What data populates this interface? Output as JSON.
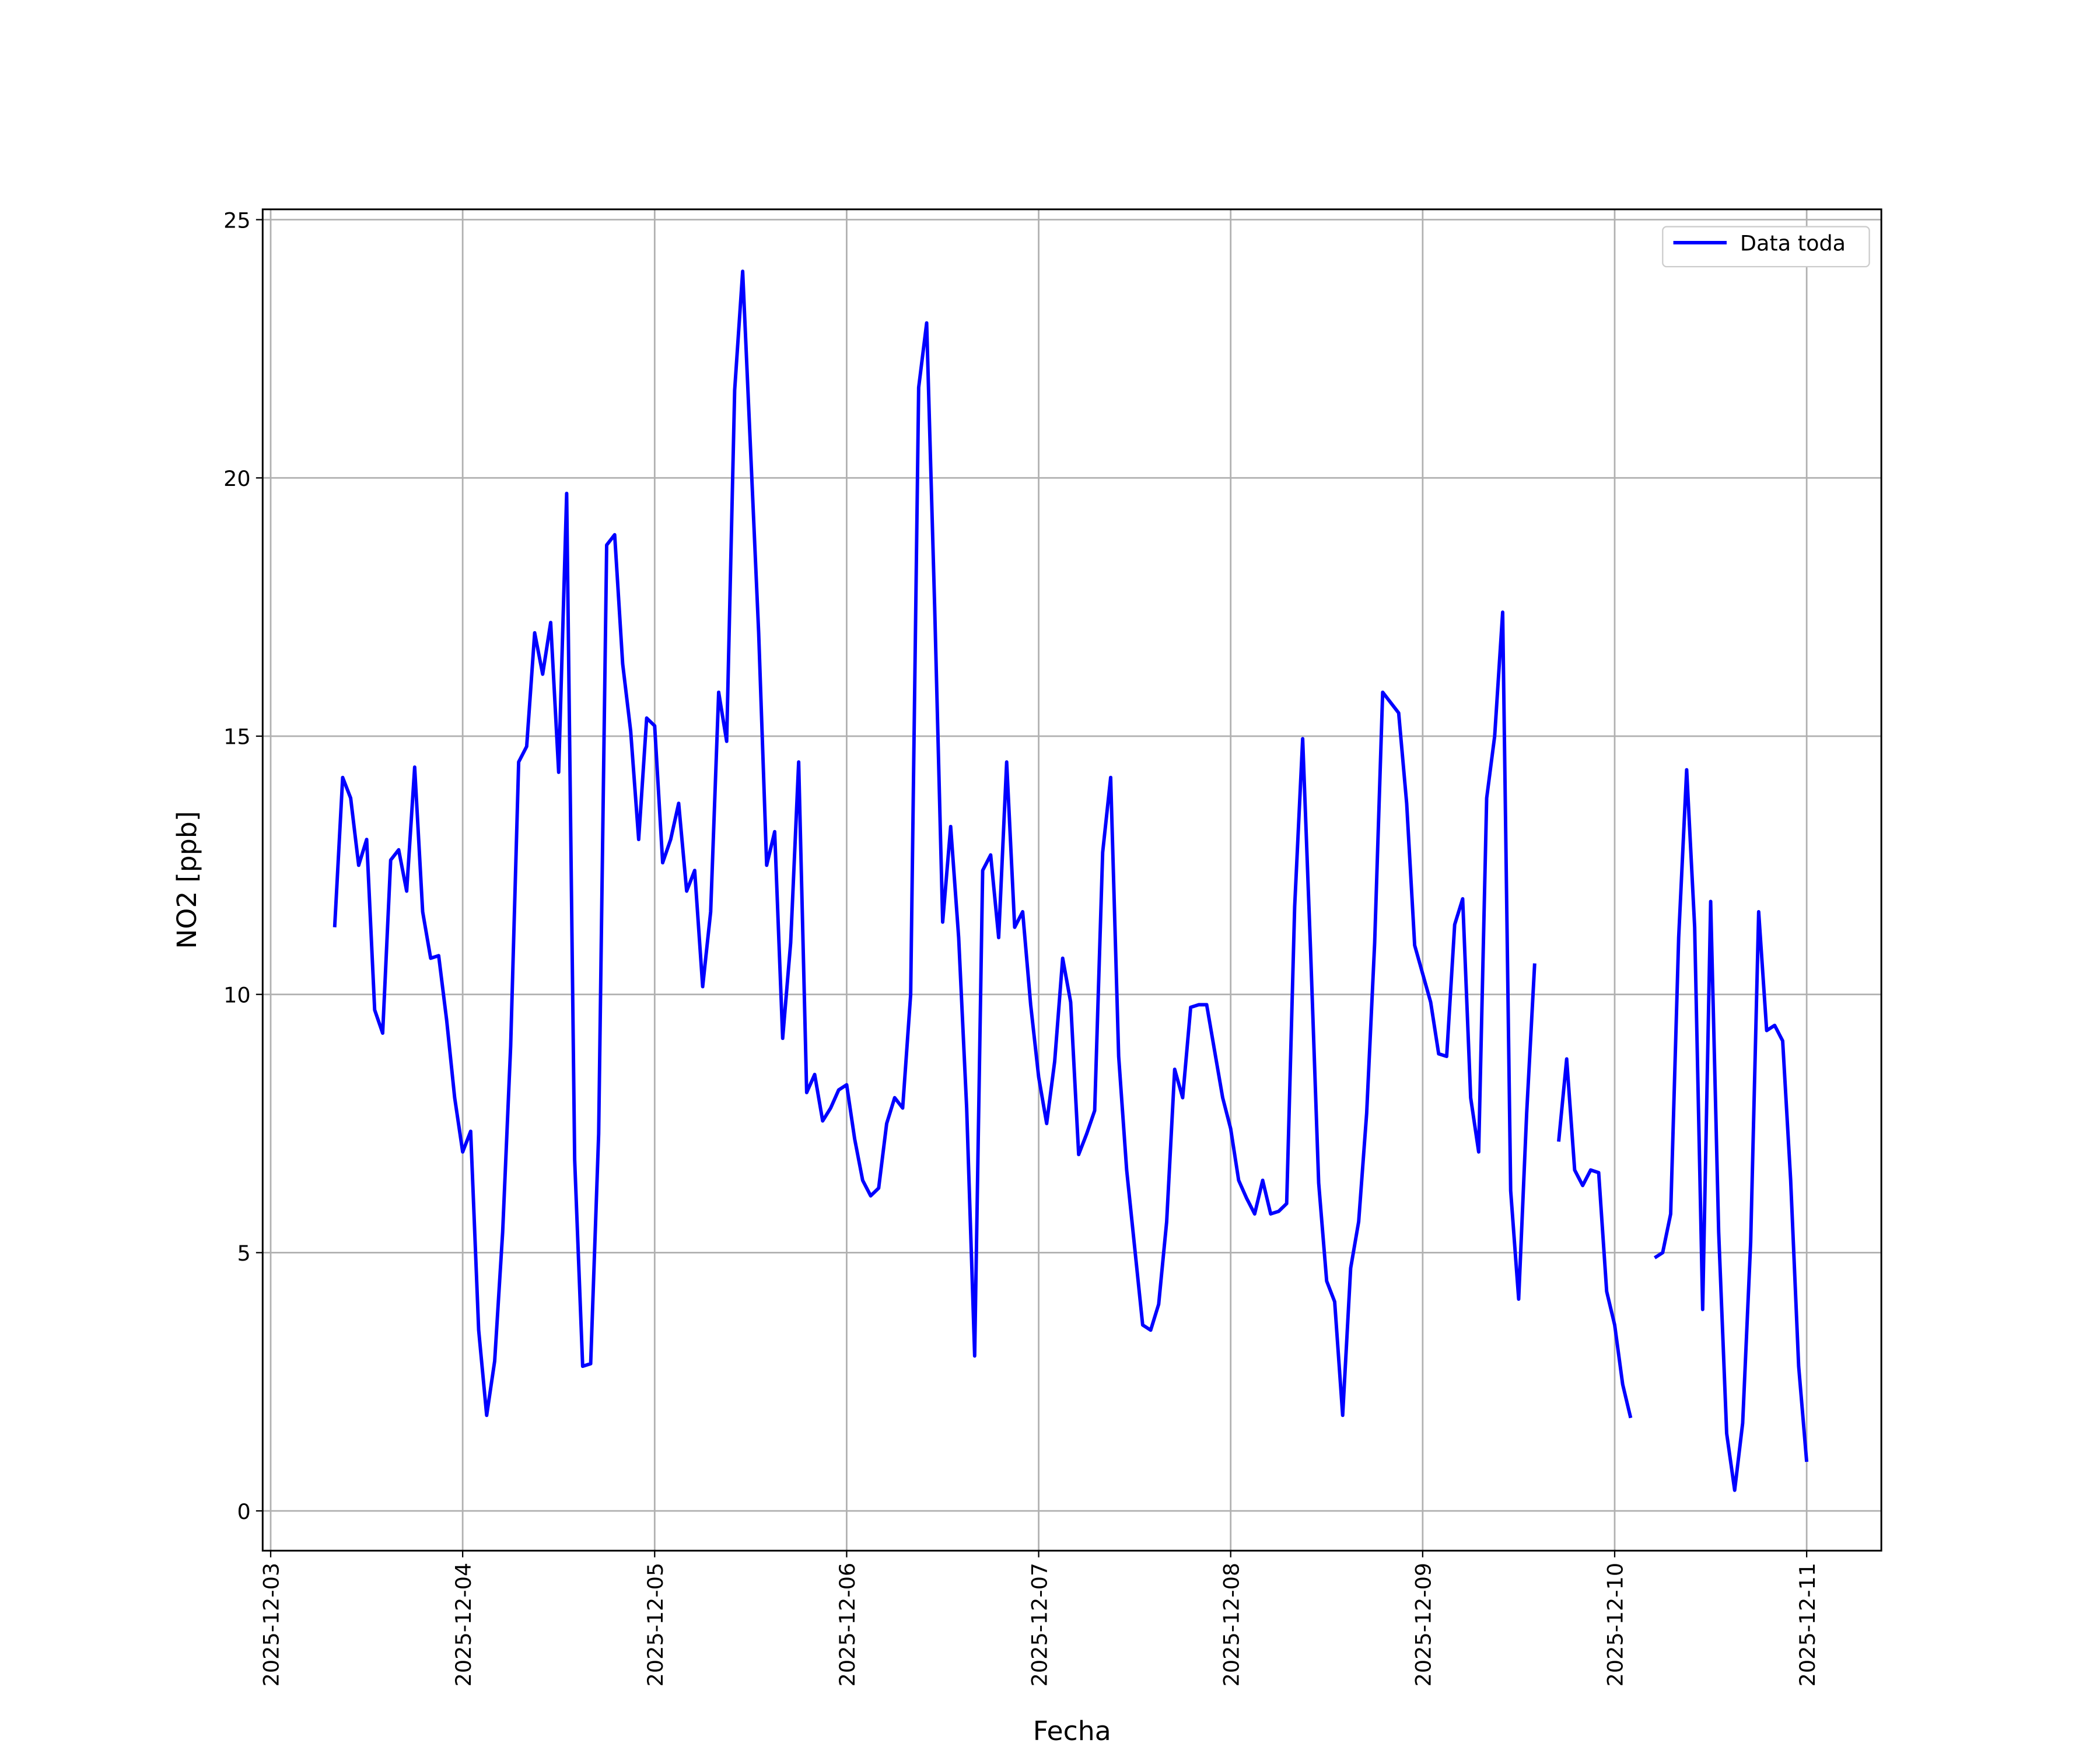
{
  "chart_data": {
    "type": "line",
    "xlabel": "Fecha",
    "ylabel": "NO2 [ppb]",
    "x": [
      "2025-12-03 08:00",
      "2025-12-03 09:00",
      "2025-12-03 10:00",
      "2025-12-03 11:00",
      "2025-12-03 12:00",
      "2025-12-03 13:00",
      "2025-12-03 14:00",
      "2025-12-03 15:00",
      "2025-12-03 16:00",
      "2025-12-03 17:00",
      "2025-12-03 18:00",
      "2025-12-03 19:00",
      "2025-12-03 20:00",
      "2025-12-03 21:00",
      "2025-12-03 22:00",
      "2025-12-03 23:00",
      "2025-12-04 00:00",
      "2025-12-04 01:00",
      "2025-12-04 02:00",
      "2025-12-04 03:00",
      "2025-12-04 04:00",
      "2025-12-04 05:00",
      "2025-12-04 06:00",
      "2025-12-04 07:00",
      "2025-12-04 08:00",
      "2025-12-04 09:00",
      "2025-12-04 10:00",
      "2025-12-04 11:00",
      "2025-12-04 12:00",
      "2025-12-04 13:00",
      "2025-12-04 14:00",
      "2025-12-04 15:00",
      "2025-12-04 16:00",
      "2025-12-04 17:00",
      "2025-12-04 18:00",
      "2025-12-04 19:00",
      "2025-12-04 20:00",
      "2025-12-04 21:00",
      "2025-12-04 22:00",
      "2025-12-04 23:00",
      "2025-12-05 00:00",
      "2025-12-05 01:00",
      "2025-12-05 02:00",
      "2025-12-05 03:00",
      "2025-12-05 04:00",
      "2025-12-05 05:00",
      "2025-12-05 06:00",
      "2025-12-05 07:00",
      "2025-12-05 08:00",
      "2025-12-05 09:00",
      "2025-12-05 10:00",
      "2025-12-05 11:00",
      "2025-12-05 12:00",
      "2025-12-05 13:00",
      "2025-12-05 14:00",
      "2025-12-05 15:00",
      "2025-12-05 16:00",
      "2025-12-05 17:00",
      "2025-12-05 18:00",
      "2025-12-05 19:00",
      "2025-12-05 20:00",
      "2025-12-05 21:00",
      "2025-12-05 22:00",
      "2025-12-05 23:00",
      "2025-12-06 00:00",
      "2025-12-06 01:00",
      "2025-12-06 02:00",
      "2025-12-06 03:00",
      "2025-12-06 04:00",
      "2025-12-06 05:00",
      "2025-12-06 06:00",
      "2025-12-06 07:00",
      "2025-12-06 08:00",
      "2025-12-06 09:00",
      "2025-12-06 10:00",
      "2025-12-06 11:00",
      "2025-12-06 12:00",
      "2025-12-06 13:00",
      "2025-12-06 14:00",
      "2025-12-06 15:00",
      "2025-12-06 16:00",
      "2025-12-06 17:00",
      "2025-12-06 18:00",
      "2025-12-06 19:00",
      "2025-12-06 20:00",
      "2025-12-06 21:00",
      "2025-12-06 22:00",
      "2025-12-06 23:00",
      "2025-12-07 00:00",
      "2025-12-07 01:00",
      "2025-12-07 02:00",
      "2025-12-07 03:00",
      "2025-12-07 04:00",
      "2025-12-07 05:00",
      "2025-12-07 06:00",
      "2025-12-07 07:00",
      "2025-12-07 08:00",
      "2025-12-07 09:00",
      "2025-12-07 10:00",
      "2025-12-07 11:00",
      "2025-12-07 12:00",
      "2025-12-07 13:00",
      "2025-12-07 14:00",
      "2025-12-07 15:00",
      "2025-12-07 16:00",
      "2025-12-07 17:00",
      "2025-12-07 18:00",
      "2025-12-07 19:00",
      "2025-12-07 20:00",
      "2025-12-07 21:00",
      "2025-12-07 22:00",
      "2025-12-07 23:00",
      "2025-12-08 00:00",
      "2025-12-08 01:00",
      "2025-12-08 02:00",
      "2025-12-08 03:00",
      "2025-12-08 04:00",
      "2025-12-08 05:00",
      "2025-12-08 06:00",
      "2025-12-08 07:00",
      "2025-12-08 08:00",
      "2025-12-08 09:00",
      "2025-12-08 10:00",
      "2025-12-08 11:00",
      "2025-12-08 12:00",
      "2025-12-08 13:00",
      "2025-12-08 14:00",
      "2025-12-08 15:00",
      "2025-12-08 16:00",
      "2025-12-08 17:00",
      "2025-12-08 18:00",
      "2025-12-08 19:00",
      "2025-12-08 20:00",
      "2025-12-08 21:00",
      "2025-12-08 22:00",
      "2025-12-08 23:00",
      "2025-12-09 00:00",
      "2025-12-09 01:00",
      "2025-12-09 02:00",
      "2025-12-09 03:00",
      "2025-12-09 04:00",
      "2025-12-09 05:00",
      "2025-12-09 06:00",
      "2025-12-09 07:00",
      "2025-12-09 08:00",
      "2025-12-09 09:00",
      "2025-12-09 10:00",
      "2025-12-09 11:00",
      "2025-12-09 12:00",
      "2025-12-09 13:00",
      "2025-12-09 14:00",
      "2025-12-09 15:00",
      "2025-12-09 16:00",
      "2025-12-09 17:00",
      "2025-12-09 18:00",
      "2025-12-09 19:00",
      "2025-12-09 20:00",
      "2025-12-09 21:00",
      "2025-12-09 22:00",
      "2025-12-09 23:00",
      "2025-12-10 00:00",
      "2025-12-10 01:00",
      "2025-12-10 02:00",
      "2025-12-10 03:00",
      "2025-12-10 04:00",
      "2025-12-10 05:00",
      "2025-12-10 06:00",
      "2025-12-10 07:00",
      "2025-12-10 08:00",
      "2025-12-10 09:00",
      "2025-12-10 10:00",
      "2025-12-10 11:00",
      "2025-12-10 12:00",
      "2025-12-10 13:00",
      "2025-12-10 14:00",
      "2025-12-10 15:00",
      "2025-12-10 16:00",
      "2025-12-10 17:00",
      "2025-12-10 18:00",
      "2025-12-10 19:00",
      "2025-12-10 20:00",
      "2025-12-10 21:00",
      "2025-12-10 22:00",
      "2025-12-10 23:00",
      "2025-12-11 00:00"
    ],
    "series": [
      {
        "name": "Data toda",
        "color": "#0000ff",
        "values": [
          11.3,
          14.2,
          13.8,
          12.5,
          13.0,
          9.7,
          9.25,
          12.6,
          12.8,
          12.0,
          14.4,
          11.6,
          10.7,
          10.75,
          9.5,
          8.0,
          6.95,
          7.35,
          3.5,
          1.85,
          2.9,
          5.4,
          9.0,
          14.5,
          14.8,
          17.0,
          16.2,
          17.2,
          14.3,
          19.7,
          6.8,
          2.8,
          2.85,
          7.3,
          18.7,
          18.9,
          16.4,
          15.1,
          13.0,
          15.35,
          15.2,
          12.55,
          13.0,
          13.7,
          12.0,
          12.4,
          10.15,
          11.6,
          15.85,
          14.9,
          21.7,
          24.0,
          20.5,
          17.0,
          12.5,
          13.15,
          9.15,
          11.0,
          14.5,
          8.1,
          8.45,
          7.55,
          7.8,
          8.15,
          8.25,
          7.2,
          6.4,
          6.1,
          6.25,
          7.5,
          8.0,
          7.8,
          10.0,
          21.75,
          23.0,
          17.5,
          11.4,
          13.25,
          11.1,
          7.8,
          3.0,
          12.4,
          12.7,
          11.1,
          14.5,
          11.3,
          11.6,
          9.8,
          8.4,
          7.5,
          8.7,
          10.7,
          9.85,
          6.9,
          7.3,
          7.75,
          12.75,
          14.2,
          8.8,
          6.6,
          5.1,
          3.6,
          3.5,
          4.0,
          5.6,
          8.55,
          8.0,
          9.75,
          9.8,
          9.8,
          8.9,
          8.0,
          7.4,
          6.4,
          6.05,
          5.75,
          6.4,
          5.75,
          5.8,
          5.95,
          11.7,
          14.95,
          10.8,
          6.35,
          4.45,
          4.05,
          1.85,
          4.7,
          5.6,
          7.7,
          11.0,
          15.85,
          15.65,
          15.45,
          13.7,
          10.95,
          10.4,
          9.85,
          8.85,
          8.8,
          11.35,
          11.85,
          8.0,
          6.95,
          13.8,
          15.0,
          17.4,
          6.2,
          4.1,
          7.7,
          10.6,
          null,
          null,
          7.15,
          8.75,
          6.6,
          6.3,
          6.6,
          6.55,
          4.25,
          3.6,
          2.45,
          1.8,
          null,
          null,
          4.9,
          5.0,
          5.75,
          11.1,
          14.35,
          11.3,
          3.9,
          11.8,
          5.4,
          1.5,
          0.4,
          1.7,
          5.2,
          11.6,
          9.3,
          9.4,
          9.1,
          6.4,
          2.8,
          0.95
        ]
      }
    ],
    "xlim": [
      "2025-12-02 23:00",
      "2025-12-11 09:20"
    ],
    "xticks": [
      "2025-12-03",
      "2025-12-04",
      "2025-12-05",
      "2025-12-06",
      "2025-12-07",
      "2025-12-08",
      "2025-12-09",
      "2025-12-10",
      "2025-12-11"
    ],
    "ylim": [
      -0.77,
      25.2
    ],
    "yticks": [
      0,
      5,
      10,
      15,
      20,
      25
    ],
    "grid": true,
    "legend": "upper right"
  }
}
